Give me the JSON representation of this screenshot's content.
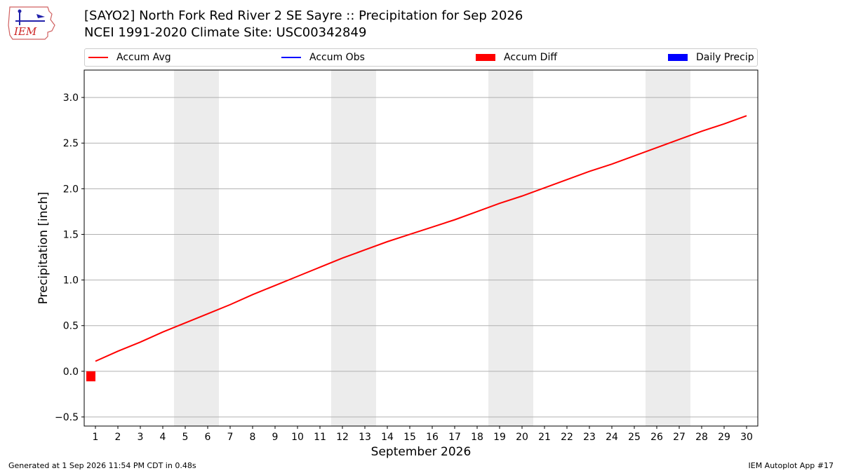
{
  "header": {
    "title_line1": "[SAYO2] North Fork Red River 2 SE Sayre :: Precipitation for Sep 2026",
    "title_line2": "NCEI 1991-2020 Climate Site: USC00342849",
    "logo_text": "IEM"
  },
  "legend": {
    "entries": [
      {
        "label": "Accum Avg",
        "color": "#ff0000",
        "kind": "line"
      },
      {
        "label": "Accum Obs",
        "color": "#0000ff",
        "kind": "line"
      },
      {
        "label": "Accum Diff",
        "color": "#ff0000",
        "kind": "patch"
      },
      {
        "label": "Daily Precip",
        "color": "#0000ff",
        "kind": "patch"
      }
    ]
  },
  "footer": {
    "left": "Generated at 1 Sep 2026 11:54 PM CDT in 0.48s",
    "right": "IEM Autoplot App #17"
  },
  "chart_data": {
    "type": "line",
    "title": "[SAYO2] North Fork Red River 2 SE Sayre :: Precipitation for Sep 2026",
    "xlabel": "September 2026",
    "ylabel": "Precipitation [inch]",
    "x": [
      1,
      2,
      3,
      4,
      5,
      6,
      7,
      8,
      9,
      10,
      11,
      12,
      13,
      14,
      15,
      16,
      17,
      18,
      19,
      20,
      21,
      22,
      23,
      24,
      25,
      26,
      27,
      28,
      29,
      30
    ],
    "xlim": [
      0.5,
      30.5
    ],
    "ylim": [
      -0.6,
      3.3
    ],
    "yticks": [
      "−0.5",
      "0.0",
      "0.5",
      "1.0",
      "1.5",
      "2.0",
      "2.5",
      "3.0"
    ],
    "ytick_values": [
      -0.5,
      0.0,
      0.5,
      1.0,
      1.5,
      2.0,
      2.5,
      3.0
    ],
    "weekend_shading": [
      [
        4.5,
        6.5
      ],
      [
        11.5,
        13.5
      ],
      [
        18.5,
        20.5
      ],
      [
        25.5,
        27.5
      ]
    ],
    "grid": "y",
    "series": [
      {
        "name": "Accum Avg",
        "type": "line",
        "color": "#ff0000",
        "values": [
          0.11,
          0.22,
          0.32,
          0.43,
          0.53,
          0.63,
          0.73,
          0.84,
          0.94,
          1.04,
          1.14,
          1.24,
          1.33,
          1.42,
          1.5,
          1.58,
          1.66,
          1.75,
          1.84,
          1.92,
          2.01,
          2.1,
          2.19,
          2.27,
          2.36,
          2.45,
          2.54,
          2.63,
          2.71,
          2.8
        ]
      },
      {
        "name": "Accum Diff",
        "type": "bar",
        "color": "#ff0000",
        "x": [
          1
        ],
        "values": [
          -0.11
        ]
      }
    ]
  }
}
